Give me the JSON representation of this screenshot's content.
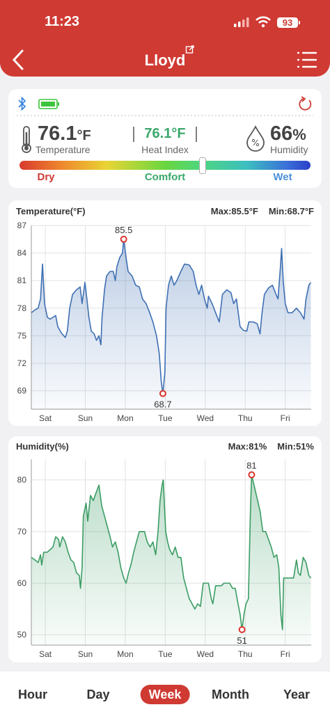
{
  "status_bar": {
    "time": "11:23",
    "battery": 93
  },
  "header": {
    "title": "Lloyd"
  },
  "readings": {
    "temperature": {
      "value": 76.1,
      "unit": "°F",
      "label": "Temperature"
    },
    "heat_index": {
      "text": "76.1°F",
      "label": "Heat Index"
    },
    "humidity": {
      "value": 66,
      "unit": "%",
      "label": "Humidity"
    }
  },
  "comfort_bar": {
    "labels": [
      "Dry",
      "Comfort",
      "Wet"
    ]
  },
  "chart_data": [
    {
      "type": "area",
      "title": "Temperature(°F)",
      "max_text": "Max:85.5°F",
      "min_text": "Min:68.7°F",
      "xlim": [
        0,
        7
      ],
      "xticks": [
        {
          "value": 0.35,
          "label": "Sat"
        },
        {
          "value": 1.35,
          "label": "Sun"
        },
        {
          "value": 2.35,
          "label": "Mon"
        },
        {
          "value": 3.35,
          "label": "Tue"
        },
        {
          "value": 4.35,
          "label": "Wed"
        },
        {
          "value": 5.35,
          "label": "Thu"
        },
        {
          "value": 6.35,
          "label": "Fri"
        }
      ],
      "ylim": [
        67,
        87
      ],
      "yticks": [
        69,
        72,
        75,
        78,
        81,
        84,
        87
      ],
      "grid": true,
      "x": [
        0,
        0.09,
        0.17,
        0.23,
        0.28,
        0.33,
        0.4,
        0.47,
        0.54,
        0.61,
        0.66,
        0.75,
        0.85,
        0.9,
        0.96,
        1.03,
        1.13,
        1.22,
        1.27,
        1.34,
        1.39,
        1.44,
        1.5,
        1.57,
        1.63,
        1.69,
        1.74,
        1.77,
        1.83,
        1.88,
        1.97,
        2.05,
        2.1,
        2.14,
        2.21,
        2.28,
        2.31,
        2.37,
        2.42,
        2.52,
        2.61,
        2.7,
        2.78,
        2.87,
        2.96,
        3.04,
        3.13,
        3.2,
        3.25,
        3.29,
        3.34,
        3.37,
        3.43,
        3.5,
        3.57,
        3.64,
        3.74,
        3.83,
        3.95,
        4.05,
        4.12,
        4.19,
        4.26,
        4.33,
        4.4,
        4.43,
        4.52,
        4.61,
        4.7,
        4.78,
        4.89,
        4.99,
        5.06,
        5.13,
        5.22,
        5.3,
        5.39,
        5.44,
        5.55,
        5.65,
        5.72,
        5.77,
        5.83,
        5.93,
        6.03,
        6.12,
        6.17,
        6.23,
        6.26,
        6.3,
        6.35,
        6.42,
        6.52,
        6.63,
        6.73,
        6.82,
        6.87,
        6.94,
        6.99
      ],
      "series": [
        {
          "color": "#3e6fb3",
          "values": [
            77.5,
            77.8,
            78,
            79,
            82.8,
            78.5,
            77,
            76.8,
            77,
            77.2,
            76,
            75.3,
            74.8,
            75.5,
            78,
            79.5,
            80,
            80.3,
            78.5,
            80.8,
            79,
            77,
            75.5,
            75.2,
            74.5,
            75,
            74,
            77,
            80,
            81.5,
            82,
            82,
            81,
            82.5,
            83.5,
            84,
            85.5,
            83.5,
            82,
            81.5,
            80.5,
            80.3,
            79,
            78.5,
            77.5,
            76.5,
            75,
            73,
            70,
            68.7,
            71,
            78,
            80.5,
            81.5,
            80.5,
            81,
            82,
            82.8,
            82.7,
            82,
            80.5,
            79.5,
            80.5,
            79,
            78,
            79.3,
            78.5,
            77.5,
            76.5,
            79.5,
            80,
            79.7,
            78.5,
            79,
            76,
            75.6,
            75.5,
            76.5,
            76.5,
            76.3,
            75.2,
            77.5,
            79.5,
            80.2,
            80.5,
            79.5,
            79,
            82.5,
            84.5,
            81,
            78.5,
            77.5,
            77.5,
            78,
            77.5,
            76.8,
            79,
            80.5,
            80.8
          ]
        }
      ],
      "annotations": [
        {
          "x": 2.31,
          "value": 85.5,
          "position": "above"
        },
        {
          "x": 3.29,
          "value": 68.7,
          "position": "below"
        }
      ]
    },
    {
      "type": "area",
      "title": "Humidity(%)",
      "max_text": "Max:81%",
      "min_text": "Min:51%",
      "xlim": [
        0,
        7
      ],
      "xticks": [
        {
          "value": 0.35,
          "label": "Sat"
        },
        {
          "value": 1.35,
          "label": "Sun"
        },
        {
          "value": 2.35,
          "label": "Mon"
        },
        {
          "value": 3.35,
          "label": "Tue"
        },
        {
          "value": 4.35,
          "label": "Wed"
        },
        {
          "value": 5.35,
          "label": "Thu"
        },
        {
          "value": 6.35,
          "label": "Fri"
        }
      ],
      "ylim": [
        48,
        84
      ],
      "yticks": [
        50,
        60,
        70,
        80
      ],
      "grid": true,
      "x": [
        0,
        0.09,
        0.17,
        0.23,
        0.26,
        0.31,
        0.4,
        0.47,
        0.54,
        0.61,
        0.68,
        0.71,
        0.78,
        0.85,
        0.92,
        0.99,
        1.06,
        1.13,
        1.2,
        1.23,
        1.27,
        1.3,
        1.37,
        1.41,
        1.48,
        1.55,
        1.62,
        1.69,
        1.76,
        1.83,
        1.9,
        1.97,
        2.03,
        2.1,
        2.17,
        2.24,
        2.31,
        2.37,
        2.43,
        2.49,
        2.56,
        2.63,
        2.7,
        2.77,
        2.83,
        2.9,
        2.97,
        3.04,
        3.11,
        3.17,
        3.22,
        3.27,
        3.3,
        3.36,
        3.41,
        3.46,
        3.53,
        3.6,
        3.67,
        3.74,
        3.81,
        3.88,
        3.95,
        4.02,
        4.09,
        4.16,
        4.23,
        4.3,
        4.37,
        4.43,
        4.5,
        4.54,
        4.61,
        4.68,
        4.75,
        4.82,
        4.89,
        4.96,
        5.03,
        5.1,
        5.17,
        5.22,
        5.27,
        5.32,
        5.37,
        5.43,
        5.48,
        5.51,
        5.57,
        5.63,
        5.72,
        5.79,
        5.86,
        5.93,
        6.0,
        6.07,
        6.14,
        6.19,
        6.24,
        6.28,
        6.31,
        6.38,
        6.49,
        6.56,
        6.63,
        6.68,
        6.73,
        6.8,
        6.87,
        6.94,
        6.99
      ],
      "series": [
        {
          "color": "#3a9c63",
          "values": [
            65,
            64.5,
            64,
            65.5,
            63.5,
            66,
            66,
            66.5,
            67,
            69,
            68.5,
            67,
            69,
            68,
            66,
            64.5,
            64,
            62,
            61.5,
            59,
            63,
            73,
            75.5,
            72,
            77,
            76,
            77.5,
            79,
            75,
            73,
            71,
            69,
            67,
            68,
            66,
            63,
            61,
            60,
            62,
            63.5,
            66,
            68,
            70,
            70,
            70,
            68,
            67,
            68,
            65.5,
            70,
            76,
            79,
            80,
            70,
            68,
            66.5,
            65.5,
            67,
            65,
            65,
            61,
            59,
            57,
            56,
            55,
            56,
            55.5,
            60,
            60,
            60,
            57,
            56,
            59.5,
            59.5,
            59.5,
            60,
            60,
            60,
            59,
            59,
            56,
            54,
            51,
            54,
            56,
            57,
            74,
            81,
            79,
            77,
            74,
            70,
            70,
            68.5,
            67,
            65,
            65.5,
            63,
            54,
            51,
            61,
            61,
            61,
            61,
            64.5,
            62,
            61.5,
            65,
            64,
            61.5,
            61
          ]
        }
      ],
      "annotations": [
        {
          "x": 5.51,
          "value": 81,
          "position": "above"
        },
        {
          "x": 5.27,
          "value": 51,
          "position": "below"
        }
      ]
    }
  ],
  "tabs": {
    "items": [
      "Hour",
      "Day",
      "Week",
      "Month",
      "Year"
    ],
    "active": 2
  }
}
